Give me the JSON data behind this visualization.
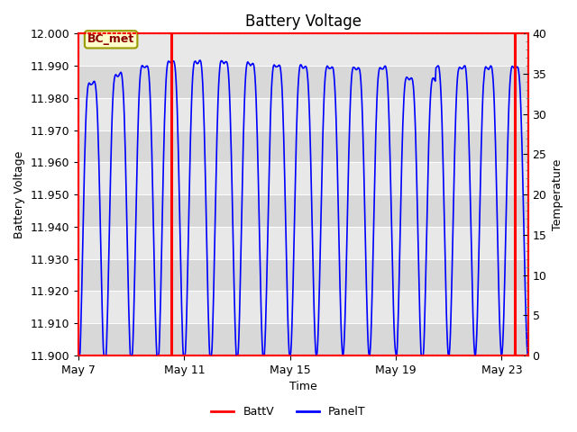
{
  "title": "Battery Voltage",
  "xlabel": "Time",
  "ylabel_left": "Battery Voltage",
  "ylabel_right": "Temperature",
  "ylim_left": [
    11.9,
    12.0
  ],
  "ylim_right": [
    0,
    40
  ],
  "yticks_left": [
    11.9,
    11.91,
    11.92,
    11.93,
    11.94,
    11.95,
    11.96,
    11.97,
    11.98,
    11.99,
    12.0
  ],
  "yticks_right": [
    0,
    5,
    10,
    15,
    20,
    25,
    30,
    35,
    40
  ],
  "xtick_labels": [
    "May 7",
    "May 11",
    "May 15",
    "May 19",
    "May 23"
  ],
  "xtick_positions": [
    0,
    4,
    8,
    12,
    16
  ],
  "xlim": [
    0,
    17
  ],
  "annotation_label": "BC_met",
  "red_line1_x": 3.5,
  "red_line2_x": 16.5,
  "background_color": "#ffffff",
  "plot_bg_color": "#eeeeee",
  "stripe_light": "#e8e8e8",
  "stripe_dark": "#d8d8d8",
  "line_color_blue": "#0000ff",
  "line_color_red": "#ff0000",
  "legend_items": [
    "BattV",
    "PanelT"
  ],
  "legend_colors": [
    "#ff0000",
    "#0000ff"
  ],
  "title_fontsize": 12,
  "label_fontsize": 9,
  "tick_fontsize": 9,
  "spine_color": "#ff0000"
}
